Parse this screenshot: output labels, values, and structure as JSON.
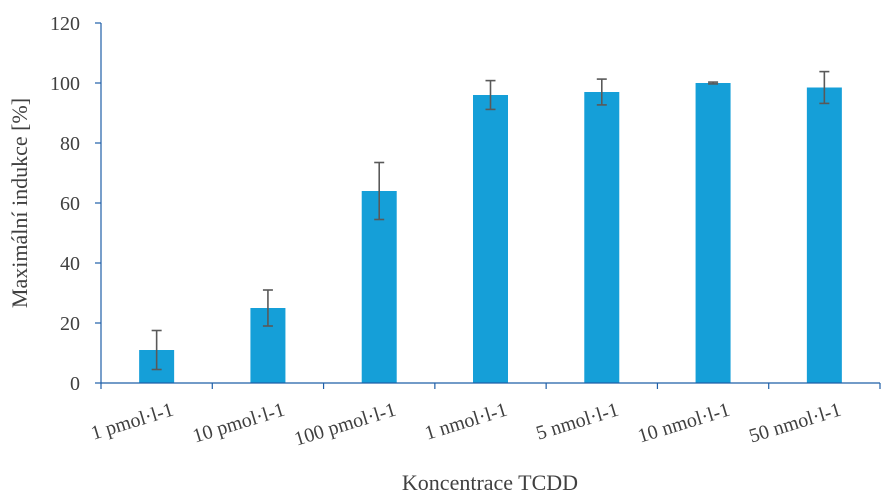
{
  "chart_data": {
    "type": "bar",
    "title": "",
    "xlabel": "Koncentrace TCDD",
    "ylabel": "Maximální indukce [%]",
    "categories": [
      "1 pmol·l-1",
      "10 pmol·l-1",
      "100 pmol·l-1",
      "1 nmol·l-1",
      "5 nmol·l-1",
      "10 nmol·l-1",
      "50 nmol·l-1"
    ],
    "values": [
      11,
      25,
      64,
      96,
      97,
      100,
      98.5
    ],
    "error": [
      6.5,
      6,
      9.5,
      4.8,
      4.3,
      0.3,
      5.3
    ],
    "ylim": [
      0,
      120
    ],
    "yticks": [
      0,
      20,
      40,
      60,
      80,
      100,
      120
    ],
    "grid": false,
    "bar_color": "#159fd8",
    "error_bar_color": "#595959",
    "axis_color": "#1f5fa8"
  }
}
